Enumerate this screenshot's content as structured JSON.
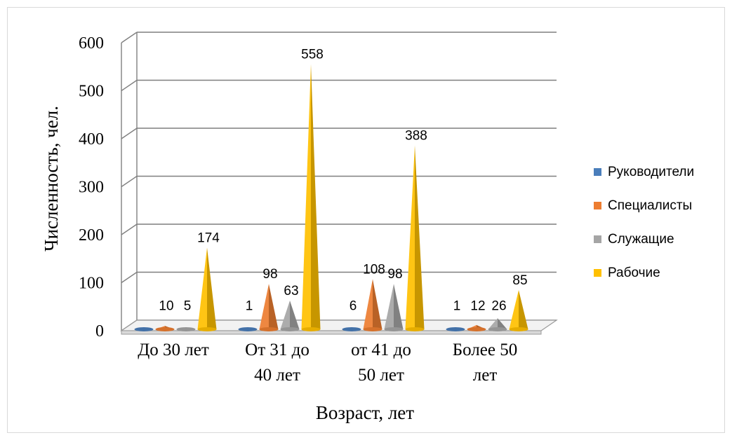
{
  "chart_data": {
    "type": "bar",
    "style": "3d-cone",
    "categories": [
      [
        "До 30 лет"
      ],
      [
        "От 31 до",
        "40 лет"
      ],
      [
        "от 41 до",
        "50 лет"
      ],
      [
        "Более 50",
        "лет"
      ]
    ],
    "series": [
      {
        "name": "Руководители",
        "color": "#4a7ebb",
        "values": [
          0,
          1,
          6,
          1
        ],
        "labels": [
          "",
          "1",
          "6",
          "1"
        ]
      },
      {
        "name": "Специалисты",
        "color": "#ed7d31",
        "values": [
          10,
          98,
          108,
          12
        ],
        "labels": [
          "10",
          "98",
          "108",
          "12"
        ]
      },
      {
        "name": "Служащие",
        "color": "#a5a5a5",
        "values": [
          5,
          63,
          98,
          26
        ],
        "labels": [
          "5",
          "63",
          "98",
          "26"
        ]
      },
      {
        "name": "Рабочие",
        "color": "#ffc000",
        "values": [
          174,
          558,
          388,
          85
        ],
        "labels": [
          "174",
          "558",
          "388",
          "85"
        ]
      }
    ],
    "yticks": [
      0,
      100,
      200,
      300,
      400,
      500,
      600
    ],
    "ylim": [
      0,
      600
    ],
    "xlabel": "Возраст, лет",
    "ylabel": "Численность, чел.",
    "legend_position": "right",
    "grid": true
  }
}
